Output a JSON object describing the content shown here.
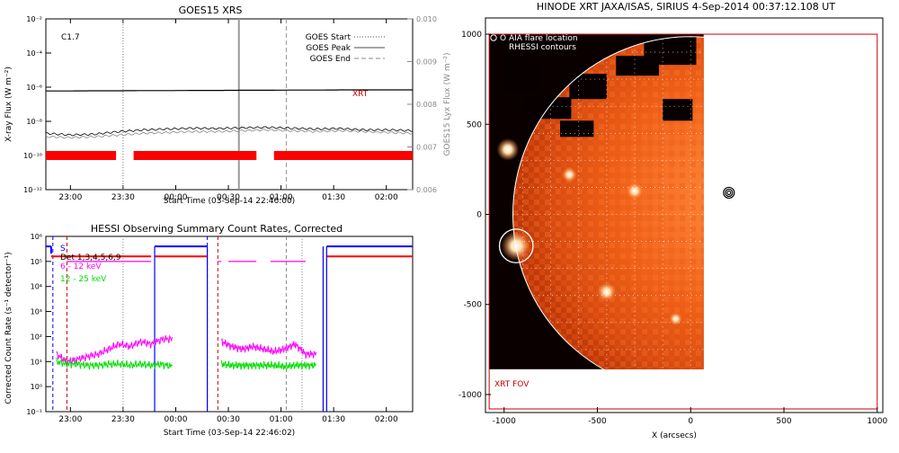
{
  "chart_data": [
    {
      "type": "line",
      "title": "GOES15 XRS",
      "xlabel": "Start Time (03-Sep-14 22:46:00)",
      "ylabel": "X-ray Flux (W m⁻²)",
      "ylabel_right": "GOES15 Lyx Flux (W m⁻²)",
      "x_ticks": [
        "23:00",
        "23:30",
        "00:00",
        "00:30",
        "01:00",
        "01:30",
        "02:00"
      ],
      "x_tick_minutes": [
        14,
        44,
        74,
        104,
        134,
        164,
        194
      ],
      "xlim_minutes": [
        0,
        209
      ],
      "y_ticks": [
        "10⁻²",
        "10⁻⁴",
        "10⁻⁶",
        "10⁻⁸",
        "10⁻¹⁰",
        "10⁻¹²"
      ],
      "y_exponents": [
        -2,
        -4,
        -6,
        -8,
        -10,
        -12
      ],
      "ylim_log": [
        -12,
        -2
      ],
      "y2_ticks": [
        "0.010",
        "0.009",
        "0.008",
        "0.007",
        "0.006"
      ],
      "y2_values": [
        0.01,
        0.009,
        0.008,
        0.007,
        0.006
      ],
      "class_label": "C1.7",
      "xrt_label": "XRT",
      "legend": [
        "GOES Start",
        "GOES Peak",
        "GOES End"
      ],
      "goes_start_min": 44,
      "goes_peak_min": 110,
      "goes_end_min": 137,
      "series": [
        {
          "name": "1-8 A",
          "color": "#000000",
          "log_flux": [
            -6.22,
            -6.22,
            -6.21,
            -6.21,
            -6.2,
            -6.2,
            -6.19,
            -6.19,
            -6.18,
            -6.18,
            -6.17,
            -6.17,
            -6.16,
            -6.16,
            -6.16,
            -6.16
          ]
        },
        {
          "name": "0.5-4 A",
          "color": "#000000",
          "log_flux": [
            -8.7,
            -8.8,
            -8.75,
            -8.6,
            -8.5,
            -8.45,
            -8.4,
            -8.42,
            -8.38,
            -8.35,
            -8.4,
            -8.45,
            -8.42,
            -8.5,
            -8.5,
            -8.55
          ]
        },
        {
          "name": "Lyx",
          "color": "#888888",
          "log_flux": [
            -8.9,
            -8.95,
            -8.9,
            -8.8,
            -8.7,
            -8.65,
            -8.6,
            -8.6,
            -8.55,
            -8.5,
            -8.55,
            -8.6,
            -8.55,
            -8.6,
            -8.65,
            -8.7
          ]
        }
      ],
      "xrt_coverage_minutes": [
        [
          0,
          40
        ],
        [
          50,
          120
        ],
        [
          130,
          209
        ]
      ]
    },
    {
      "type": "line",
      "title": "HESSI Observing Summary Count Rates, Corrected",
      "xlabel": "Start Time (03-Sep-14 22:46:02)",
      "ylabel": "Corrected Count Rate (s⁻¹ detector⁻¹)",
      "x_ticks": [
        "23:00",
        "23:30",
        "00:00",
        "00:30",
        "01:00",
        "01:30",
        "02:00"
      ],
      "x_tick_minutes": [
        14,
        44,
        74,
        104,
        134,
        164,
        194
      ],
      "xlim_minutes": [
        0,
        209
      ],
      "y_ticks": [
        "10⁶",
        "10⁵",
        "10⁴",
        "10³",
        "10²",
        "10¹",
        "10⁰",
        "10⁻¹"
      ],
      "y_exponents": [
        6,
        5,
        4,
        3,
        2,
        1,
        0,
        -1
      ],
      "ylim_log": [
        -1,
        6
      ],
      "legend": [
        {
          "label": "S",
          "color": "#0000ff"
        },
        {
          "label": "Det 1,3,4,5,6,9",
          "color": "#000000"
        },
        {
          "label": "6 - 12 keV",
          "color": "#ff00ff"
        },
        {
          "label": "12 - 25 keV",
          "color": "#00dd00"
        }
      ],
      "vertical_markers": [
        {
          "minute": 4,
          "color": "#0000ff",
          "style": "dashed"
        },
        {
          "minute": 12,
          "color": "#cc0000",
          "style": "dashed"
        },
        {
          "minute": 44,
          "color": "#888888",
          "style": "dotted"
        },
        {
          "minute": 92,
          "color": "#0000ff",
          "style": "dashed"
        },
        {
          "minute": 98,
          "color": "#cc0000",
          "style": "dashed"
        },
        {
          "minute": 137,
          "color": "#888888",
          "style": "dashed"
        },
        {
          "minute": 146,
          "color": "#888888",
          "style": "dotted"
        }
      ],
      "series": [
        {
          "name": "6 - 12 keV",
          "color": "#ff00ff",
          "segments": [
            {
              "x": [
                6,
                12,
                18,
                24,
                30,
                36,
                42,
                48,
                54,
                60,
                66,
                72
              ],
              "log_rate": [
                1.3,
                1.0,
                1.1,
                1.2,
                1.3,
                1.5,
                1.7,
                1.6,
                1.8,
                1.7,
                1.9,
                1.9
              ]
            },
            {
              "x": [
                100,
                106,
                112,
                118,
                124,
                130,
                136,
                142,
                148,
                154
              ],
              "log_rate": [
                1.8,
                1.6,
                1.5,
                1.6,
                1.5,
                1.4,
                1.5,
                1.7,
                1.3,
                1.3
              ]
            }
          ]
        },
        {
          "name": "12 - 25 keV",
          "color": "#00dd00",
          "segments": [
            {
              "x": [
                6,
                12,
                18,
                24,
                30,
                36,
                42,
                48,
                54,
                60,
                66,
                72
              ],
              "log_rate": [
                1.0,
                0.9,
                0.9,
                0.85,
                0.85,
                0.9,
                0.9,
                0.85,
                0.9,
                0.85,
                0.9,
                0.8
              ]
            },
            {
              "x": [
                100,
                106,
                112,
                118,
                124,
                130,
                136,
                142,
                148,
                154
              ],
              "log_rate": [
                0.9,
                0.85,
                0.85,
                0.85,
                0.85,
                0.85,
                0.8,
                0.85,
                0.85,
                0.85
              ]
            }
          ]
        }
      ],
      "attenuator_blue_log": 5.6,
      "attenuator_red_log": 5.2,
      "magenta_top_log": 5.0
    },
    {
      "type": "image",
      "title": "HINODE XRT JAXA/ISAS, SIRIUS   4-Sep-2014 00:37:12.108 UT",
      "xlabel": "X (arcsecs)",
      "x_ticks": [
        -1000,
        -500,
        0,
        500,
        1000
      ],
      "y_ticks": [
        1000,
        500,
        0,
        -500,
        -1000
      ],
      "xlim": [
        -1100,
        1030
      ],
      "ylim": [
        -1100,
        1090
      ],
      "legend_flare": "O AIA flare location",
      "legend_rhessi": "RHESSI contours",
      "fov_label": "XRT FOV",
      "fov_box": {
        "x": [
          -1080,
          1000
        ],
        "y": [
          -1080,
          1000
        ]
      },
      "image_extent": {
        "x": [
          -1080,
          70
        ],
        "y": [
          -860,
          1000
        ]
      },
      "solar_limb_radius": 953,
      "flare_circle": {
        "x": -935,
        "y": -175,
        "r": 90
      },
      "rhessi_contour": {
        "x": 205,
        "y": 120
      }
    }
  ]
}
